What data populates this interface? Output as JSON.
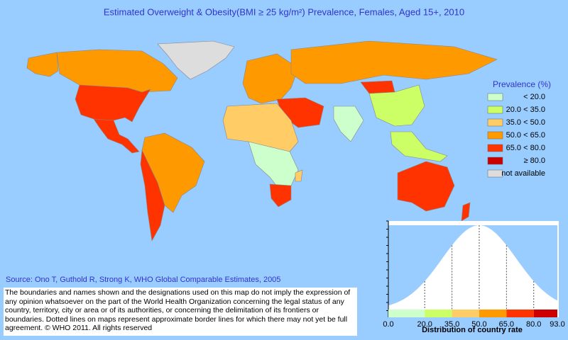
{
  "title": "Estimated Overweight & Obesity(BMI ≥ 25 kg/m²) Prevalence, Females, Aged 15+, 2010",
  "legend": {
    "title": "Prevalence (%)",
    "items": [
      {
        "label": "< 20.0",
        "color": "#ccffcc"
      },
      {
        "label": "20.0 < 35.0",
        "color": "#ccff66"
      },
      {
        "label": "35.0 < 50.0",
        "color": "#ffcc66"
      },
      {
        "label": "50.0 < 65.0",
        "color": "#ff9900"
      },
      {
        "label": "65.0 < 80.0",
        "color": "#ff3300"
      },
      {
        "label": "≥ 80.0",
        "color": "#cc0000"
      },
      {
        "label": "not available",
        "color": "#dddddd"
      }
    ]
  },
  "source": "Source: Ono T, Guthold R, Strong K, WHO Global Comparable Estimates, 2005",
  "disclaimer": "The boundaries and names shown and the designations used on this map do not imply the expression of any opinion whatsoever on the part of the World Health Organization concerning the legal status of any country, territory, city or area or of its authorities, or concerning the delimitation of its frontiers or boundaries. Dotted lines on maps represent approximate border lines for which there may not yet be full agreement. © WHO 2011. All rights reserved",
  "distribution": {
    "xlabel": "Distribution of country rate",
    "xlim": [
      0,
      93
    ],
    "xticks": [
      {
        "value": 0,
        "label": "0.0"
      },
      {
        "value": 20,
        "label": "20.0"
      },
      {
        "value": 35,
        "label": "35.0"
      },
      {
        "value": 50,
        "label": "50.0"
      },
      {
        "value": 65,
        "label": "65.0"
      },
      {
        "value": 80,
        "label": "80.0"
      },
      {
        "value": 93,
        "label": "93.0"
      }
    ]
  }
}
